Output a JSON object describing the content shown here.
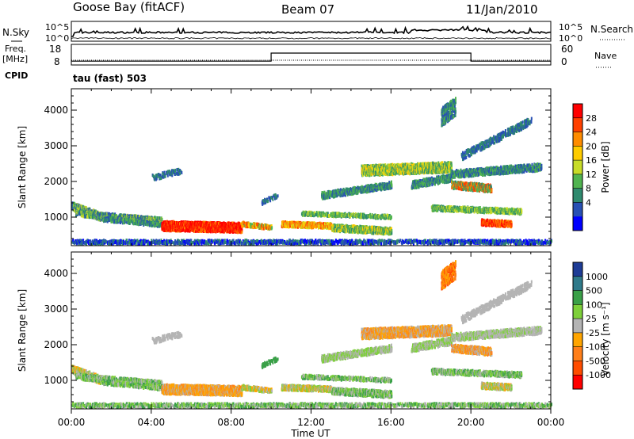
{
  "header": {
    "station": "Goose Bay (fitACF)",
    "beam": "Beam 07",
    "date": "11/Jan/2010"
  },
  "panels": {
    "nsky": {
      "label": "N.Sky",
      "right_label": "N.Search",
      "ticks": [
        "10^5",
        "10^0"
      ],
      "right_ticks": [
        "10^5",
        "10^0"
      ]
    },
    "freq": {
      "label_line1": "Freq.",
      "label_line2": "[MHz]",
      "cpid": "CPID",
      "ticks": [
        18,
        8
      ],
      "right_label": "Nave",
      "right_ticks": [
        60,
        0
      ],
      "mode_text": "tau (fast) 503"
    }
  },
  "chart_data": [
    {
      "type": "heatmap",
      "quantity": "Power",
      "ylabel": "Slant Range [km]",
      "yticks": [
        1000,
        2000,
        3000,
        4000
      ],
      "ylim": [
        200,
        4600
      ],
      "xlim": [
        0,
        24
      ],
      "colorbar": {
        "label": "Power [dB]",
        "ticks": [
          "28",
          "24",
          "20",
          "16",
          "12",
          "8",
          "4"
        ],
        "colors": [
          "#ff0000",
          "#ff4000",
          "#ff8c00",
          "#ffcc00",
          "#c8dc28",
          "#50b450",
          "#2f8a6e",
          "#2850b4",
          "#0000ff"
        ]
      }
    },
    {
      "type": "heatmap",
      "quantity": "Velocity",
      "ylabel": "Slant Range [km]",
      "yticks": [
        1000,
        2000,
        3000,
        4000
      ],
      "ylim": [
        200,
        4600
      ],
      "xlim": [
        0,
        24
      ],
      "colorbar": {
        "label": "Velocity  [m s⁻¹]",
        "ticks": [
          "1000",
          "500",
          "100",
          "25",
          "-25",
          "-100",
          "-500",
          "-1000"
        ],
        "colors": [
          "#1e3c96",
          "#2f7a8a",
          "#3aa048",
          "#7ed03a",
          "#b4b4b4",
          "#ffa500",
          "#ff7f1a",
          "#ff4d00",
          "#ff0000"
        ]
      }
    }
  ],
  "xaxis": {
    "label": "Time UT",
    "ticks": [
      "00:00",
      "04:00",
      "08:00",
      "12:00",
      "16:00",
      "20:00",
      "00:00"
    ]
  },
  "freq_series": {
    "x_hours": [
      0,
      10,
      10,
      20,
      20,
      24
    ],
    "mhz": [
      10.2,
      10.2,
      14.8,
      14.8,
      10.2,
      10.2
    ]
  }
}
